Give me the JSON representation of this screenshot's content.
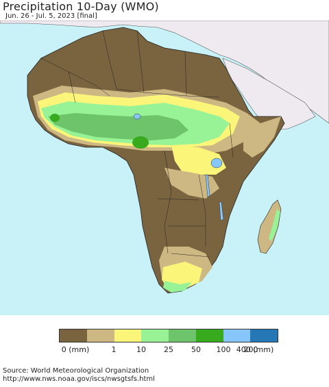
{
  "header": {
    "title": "Precipitation 10-Day (WMO)",
    "subtitle": "Jun. 26 - Jul. 5, 2023 [final]"
  },
  "legend": {
    "colors": [
      "#7a6440",
      "#cdb883",
      "#fbf67a",
      "#97f395",
      "#6ec46a",
      "#38aa1e",
      "#86c6fb",
      "#2578b5"
    ],
    "labels": [
      "0 (mm)",
      "1",
      "10",
      "25",
      "50",
      "100",
      "200",
      "400 (mm)"
    ]
  },
  "map_colors": {
    "ocean": "#c8f2f8",
    "other_land": "#efeaef",
    "dry": "#7a6440",
    "light": "#cdb883",
    "moderate": "#fbf67a",
    "wet": "#97f395",
    "wetter": "#6ec46a",
    "very_wet": "#38aa1e",
    "lake": "#86c6fb"
  },
  "footer": {
    "source_line1": "Source: World Meteorological Organization",
    "source_line2": "http://www.nws.noaa.gov/iscs/nwsgtsfs.html"
  }
}
